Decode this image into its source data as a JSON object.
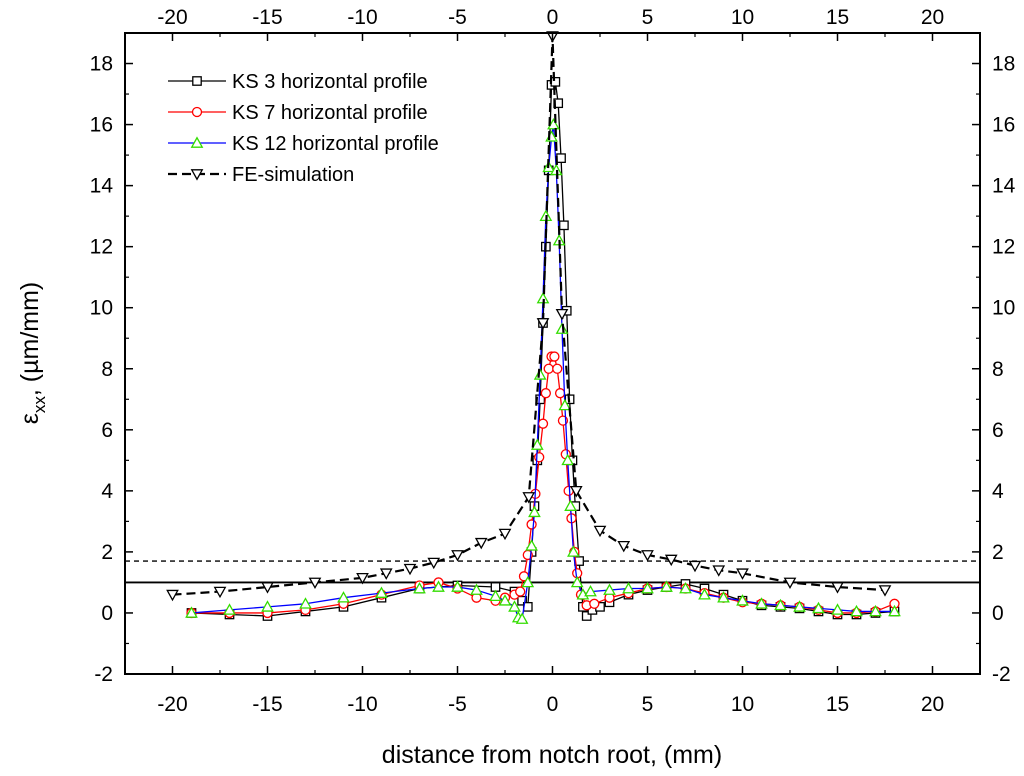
{
  "chart_data": {
    "type": "line",
    "title": "",
    "xlabel": "distance from notch root, (mm)",
    "ylabel_main": "ε",
    "ylabel_sub": "xx",
    "ylabel_rest": ", (µm/mm)",
    "xlim": [
      -22.5,
      22.5
    ],
    "ylim": [
      -2,
      19
    ],
    "xticks": [
      -20,
      -15,
      -10,
      -5,
      0,
      5,
      10,
      15,
      20
    ],
    "yticks": [
      -2,
      0,
      2,
      4,
      6,
      8,
      10,
      12,
      14,
      16,
      18
    ],
    "xtick_labels": [
      "-20",
      "-15",
      "-10",
      "-5",
      "0",
      "5",
      "10",
      "15",
      "20"
    ],
    "ytick_labels": [
      "-2",
      "0",
      "2",
      "4",
      "6",
      "8",
      "10",
      "12",
      "14",
      "16",
      "18"
    ],
    "grid": false,
    "legend_position": "top-left",
    "reference_lines": [
      {
        "name": "threshold-solid",
        "y": 1.0,
        "style": "solid"
      },
      {
        "name": "threshold-dashed",
        "y": 1.7,
        "style": "dashed"
      }
    ],
    "series": [
      {
        "name": "KS 3 horizontal profile",
        "color": "#000000",
        "marker": "square",
        "line": "solid",
        "points": [
          [
            -19.0,
            0.0
          ],
          [
            -17.0,
            -0.05
          ],
          [
            -15.0,
            -0.1
          ],
          [
            -13.0,
            0.05
          ],
          [
            -11.0,
            0.2
          ],
          [
            -9.0,
            0.5
          ],
          [
            -7.0,
            0.8
          ],
          [
            -5.0,
            0.9
          ],
          [
            -3.0,
            0.85
          ],
          [
            -2.0,
            0.7
          ],
          [
            -1.6,
            0.4
          ],
          [
            -1.3,
            0.2
          ],
          [
            -1.1,
            2.0
          ],
          [
            -0.95,
            3.5
          ],
          [
            -0.8,
            5.0
          ],
          [
            -0.65,
            7.0
          ],
          [
            -0.5,
            9.5
          ],
          [
            -0.35,
            12.0
          ],
          [
            -0.2,
            14.5
          ],
          [
            -0.05,
            17.3
          ],
          [
            0.15,
            17.4
          ],
          [
            0.3,
            16.7
          ],
          [
            0.45,
            14.9
          ],
          [
            0.6,
            12.7
          ],
          [
            0.75,
            9.9
          ],
          [
            0.9,
            7.0
          ],
          [
            1.05,
            5.0
          ],
          [
            1.2,
            3.5
          ],
          [
            1.4,
            1.7
          ],
          [
            1.6,
            0.2
          ],
          [
            1.8,
            -0.1
          ],
          [
            2.1,
            0.1
          ],
          [
            2.5,
            0.2
          ],
          [
            3.0,
            0.35
          ],
          [
            4.0,
            0.6
          ],
          [
            5.0,
            0.75
          ],
          [
            6.0,
            0.85
          ],
          [
            7.0,
            0.95
          ],
          [
            8.0,
            0.8
          ],
          [
            9.0,
            0.6
          ],
          [
            10.0,
            0.4
          ],
          [
            11.0,
            0.25
          ],
          [
            12.0,
            0.2
          ],
          [
            13.0,
            0.15
          ],
          [
            14.0,
            0.05
          ],
          [
            15.0,
            -0.05
          ],
          [
            16.0,
            -0.05
          ],
          [
            17.0,
            0.0
          ],
          [
            18.0,
            0.05
          ]
        ]
      },
      {
        "name": "KS 7  horizontal profile",
        "color": "#ff0000",
        "marker": "circle",
        "line": "solid",
        "points": [
          [
            -19.0,
            0.0
          ],
          [
            -17.0,
            0.0
          ],
          [
            -15.0,
            0.0
          ],
          [
            -13.0,
            0.1
          ],
          [
            -11.0,
            0.3
          ],
          [
            -9.0,
            0.6
          ],
          [
            -7.0,
            0.9
          ],
          [
            -6.0,
            1.0
          ],
          [
            -5.0,
            0.8
          ],
          [
            -4.0,
            0.5
          ],
          [
            -3.0,
            0.4
          ],
          [
            -2.5,
            0.5
          ],
          [
            -2.0,
            0.6
          ],
          [
            -1.7,
            0.7
          ],
          [
            -1.5,
            1.2
          ],
          [
            -1.3,
            1.9
          ],
          [
            -1.1,
            2.9
          ],
          [
            -0.9,
            3.9
          ],
          [
            -0.7,
            5.1
          ],
          [
            -0.5,
            6.2
          ],
          [
            -0.35,
            7.2
          ],
          [
            -0.2,
            8.0
          ],
          [
            -0.05,
            8.4
          ],
          [
            0.1,
            8.4
          ],
          [
            0.25,
            8.0
          ],
          [
            0.4,
            7.2
          ],
          [
            0.55,
            6.3
          ],
          [
            0.7,
            5.2
          ],
          [
            0.85,
            4.0
          ],
          [
            1.0,
            3.1
          ],
          [
            1.15,
            2.0
          ],
          [
            1.3,
            1.3
          ],
          [
            1.5,
            0.6
          ],
          [
            1.8,
            0.25
          ],
          [
            2.2,
            0.3
          ],
          [
            3.0,
            0.5
          ],
          [
            4.0,
            0.65
          ],
          [
            5.0,
            0.8
          ],
          [
            6.0,
            0.85
          ],
          [
            7.0,
            0.8
          ],
          [
            8.0,
            0.65
          ],
          [
            9.0,
            0.5
          ],
          [
            10.0,
            0.35
          ],
          [
            11.0,
            0.3
          ],
          [
            12.0,
            0.25
          ],
          [
            13.0,
            0.2
          ],
          [
            14.0,
            0.1
          ],
          [
            15.0,
            0.0
          ],
          [
            16.0,
            0.0
          ],
          [
            17.0,
            0.05
          ],
          [
            18.0,
            0.3
          ]
        ]
      },
      {
        "name": "KS 12  horizontal profile",
        "color": "#0000ff",
        "marker": "triangle-up",
        "marker_color": "#33dd00",
        "line": "solid",
        "points": [
          [
            -19.0,
            0.0
          ],
          [
            -17.0,
            0.1
          ],
          [
            -15.0,
            0.2
          ],
          [
            -13.0,
            0.3
          ],
          [
            -11.0,
            0.5
          ],
          [
            -9.0,
            0.65
          ],
          [
            -7.0,
            0.8
          ],
          [
            -6.0,
            0.85
          ],
          [
            -5.0,
            0.85
          ],
          [
            -4.0,
            0.75
          ],
          [
            -3.0,
            0.55
          ],
          [
            -2.5,
            0.4
          ],
          [
            -2.0,
            0.2
          ],
          [
            -1.8,
            -0.15
          ],
          [
            -1.6,
            -0.2
          ],
          [
            -1.3,
            1.0
          ],
          [
            -1.1,
            2.2
          ],
          [
            -0.95,
            3.3
          ],
          [
            -0.8,
            5.5
          ],
          [
            -0.65,
            7.8
          ],
          [
            -0.5,
            10.3
          ],
          [
            -0.35,
            13.0
          ],
          [
            -0.2,
            14.6
          ],
          [
            -0.05,
            15.6
          ],
          [
            0.05,
            16.0
          ],
          [
            0.2,
            14.5
          ],
          [
            0.35,
            12.2
          ],
          [
            0.5,
            9.3
          ],
          [
            0.65,
            6.8
          ],
          [
            0.8,
            5.0
          ],
          [
            0.95,
            3.5
          ],
          [
            1.1,
            2.0
          ],
          [
            1.3,
            1.0
          ],
          [
            1.6,
            0.6
          ],
          [
            2.0,
            0.7
          ],
          [
            3.0,
            0.75
          ],
          [
            4.0,
            0.8
          ],
          [
            5.0,
            0.8
          ],
          [
            6.0,
            0.85
          ],
          [
            7.0,
            0.8
          ],
          [
            8.0,
            0.6
          ],
          [
            9.0,
            0.5
          ],
          [
            10.0,
            0.4
          ],
          [
            11.0,
            0.3
          ],
          [
            12.0,
            0.25
          ],
          [
            13.0,
            0.2
          ],
          [
            14.0,
            0.15
          ],
          [
            15.0,
            0.1
          ],
          [
            16.0,
            0.05
          ],
          [
            17.0,
            0.05
          ],
          [
            18.0,
            0.05
          ]
        ]
      },
      {
        "name": "FE-simulation",
        "color": "#000000",
        "marker": "triangle-down",
        "line": "dashed",
        "points": [
          [
            -20.0,
            0.6
          ],
          [
            -17.5,
            0.7
          ],
          [
            -15.0,
            0.85
          ],
          [
            -12.5,
            1.0
          ],
          [
            -10.0,
            1.15
          ],
          [
            -8.75,
            1.3
          ],
          [
            -7.5,
            1.45
          ],
          [
            -6.25,
            1.65
          ],
          [
            -5.0,
            1.9
          ],
          [
            -3.75,
            2.3
          ],
          [
            -2.5,
            2.6
          ],
          [
            -1.25,
            3.8
          ],
          [
            -0.5,
            9.5
          ],
          [
            0.0,
            18.9
          ],
          [
            0.5,
            9.8
          ],
          [
            1.25,
            4.0
          ],
          [
            2.5,
            2.7
          ],
          [
            3.75,
            2.2
          ],
          [
            5.0,
            1.9
          ],
          [
            6.25,
            1.75
          ],
          [
            7.5,
            1.55
          ],
          [
            8.75,
            1.4
          ],
          [
            10.0,
            1.3
          ],
          [
            12.5,
            1.0
          ],
          [
            15.0,
            0.85
          ],
          [
            17.5,
            0.75
          ]
        ]
      }
    ]
  }
}
